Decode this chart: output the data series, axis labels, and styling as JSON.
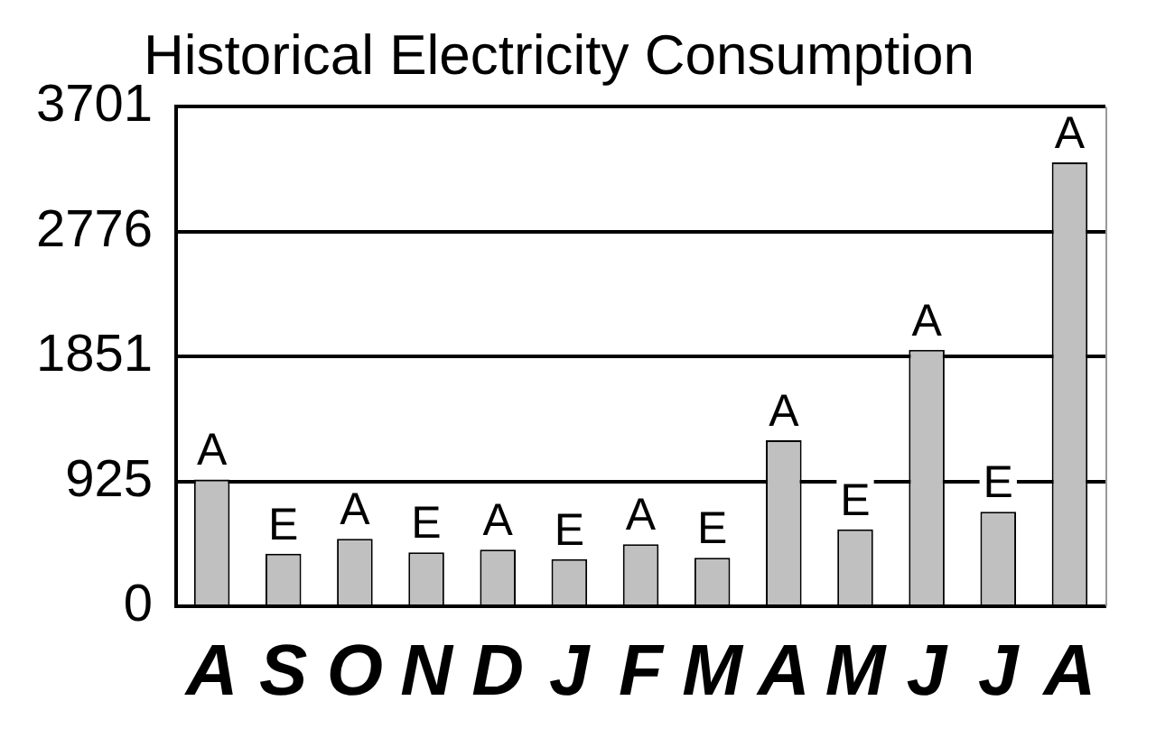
{
  "chart_data": {
    "type": "bar",
    "title": "Historical Electricity Consumption",
    "categories": [
      "A",
      "S",
      "O",
      "N",
      "D",
      "J",
      "F",
      "M",
      "A",
      "M",
      "J",
      "J",
      "A"
    ],
    "values": [
      940,
      390,
      500,
      400,
      420,
      350,
      460,
      360,
      1230,
      570,
      1900,
      700,
      3290
    ],
    "value_labels": [
      "A",
      "E",
      "A",
      "E",
      "A",
      "E",
      "A",
      "E",
      "A",
      "E",
      "A",
      "E",
      "A"
    ],
    "color": "#c0c0c0",
    "ylim": [
      0,
      3701
    ],
    "yticks": [
      0,
      925,
      1851,
      2776,
      3701
    ],
    "grid": "y",
    "legend": false
  }
}
